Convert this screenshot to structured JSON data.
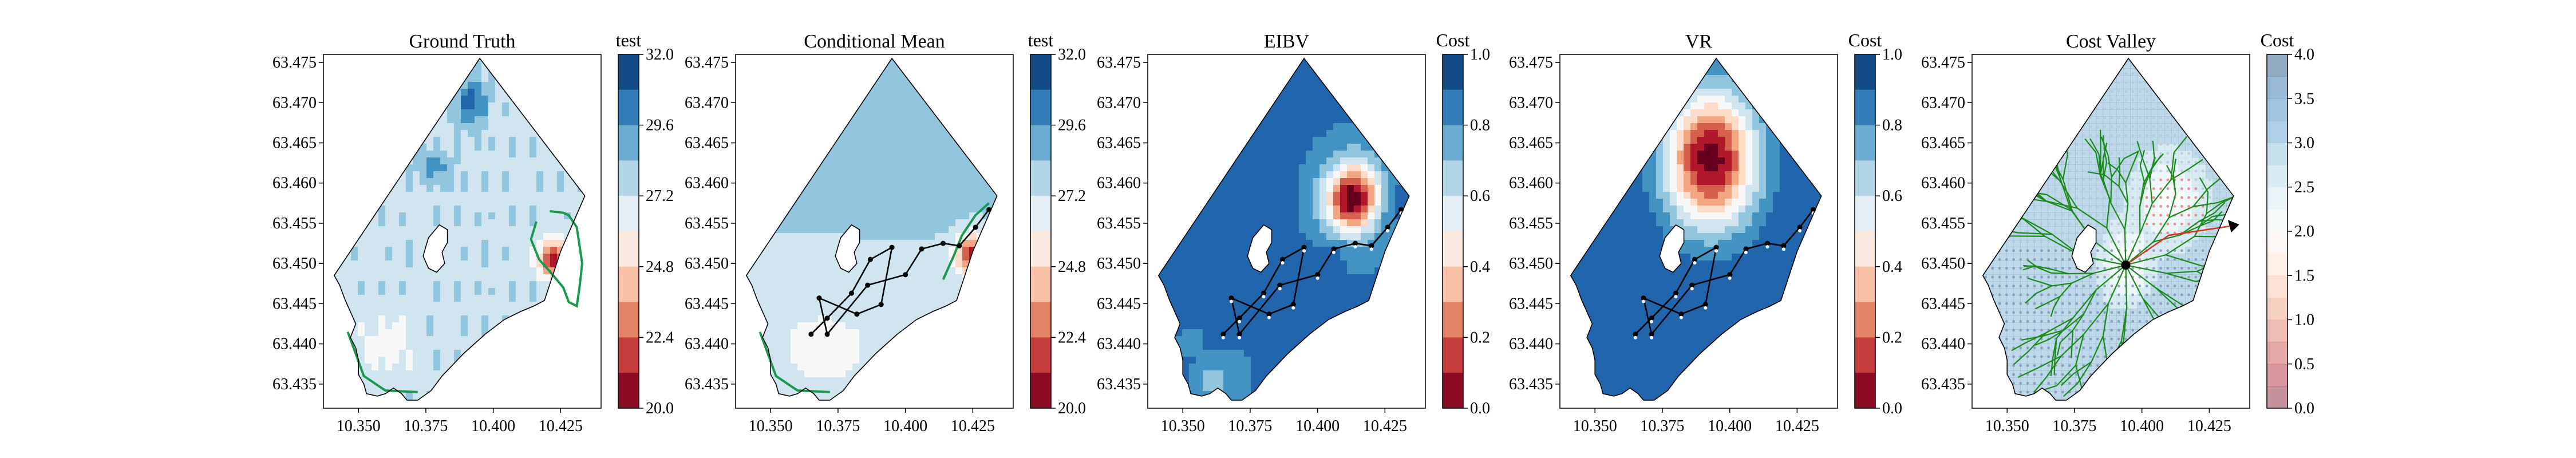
{
  "chart_data": [
    {
      "type": "heatmap",
      "title": "Ground Truth",
      "colorbar_label": "test",
      "colormap": "RdBu",
      "colorbar_ticks": [
        "32.0",
        "29.6",
        "27.2",
        "24.8",
        "22.4",
        "20.0"
      ],
      "colorbar_range": [
        20.0,
        32.0
      ],
      "x_ticks": [
        "10.350",
        "10.375",
        "10.400",
        "10.425"
      ],
      "y_ticks": [
        "63.475",
        "63.470",
        "63.465",
        "63.460",
        "63.455",
        "63.450",
        "63.445",
        "63.440",
        "63.435"
      ],
      "xlim": [
        10.337,
        10.44
      ],
      "ylim": [
        63.432,
        63.476
      ],
      "overlays": [
        "threshold contour (green)"
      ]
    },
    {
      "type": "heatmap",
      "title": "Conditional Mean",
      "colorbar_label": "test",
      "colormap": "RdBu",
      "colorbar_ticks": [
        "32.0",
        "29.6",
        "27.2",
        "24.8",
        "22.4",
        "20.0"
      ],
      "colorbar_range": [
        20.0,
        32.0
      ],
      "x_ticks": [
        "10.350",
        "10.375",
        "10.400",
        "10.425"
      ],
      "y_ticks": [
        "63.475",
        "63.470",
        "63.465",
        "63.460",
        "63.455",
        "63.450",
        "63.445",
        "63.440",
        "63.435"
      ],
      "xlim": [
        10.337,
        10.44
      ],
      "ylim": [
        63.432,
        63.476
      ],
      "overlays": [
        "threshold contour (green)",
        "sampling trajectory (black)"
      ],
      "trajectory": [
        [
          10.365,
          63.4412
        ],
        [
          10.371,
          63.4432
        ],
        [
          10.38,
          63.4463
        ],
        [
          10.387,
          63.4505
        ],
        [
          10.395,
          63.452
        ],
        [
          10.391,
          63.4449
        ],
        [
          10.382,
          63.4437
        ],
        [
          10.368,
          63.4457
        ],
        [
          10.371,
          63.4412
        ],
        [
          10.386,
          63.4473
        ],
        [
          10.4,
          63.4486
        ],
        [
          10.406,
          63.4518
        ],
        [
          10.414,
          63.4525
        ],
        [
          10.42,
          63.4522
        ],
        [
          10.426,
          63.4545
        ],
        [
          10.431,
          63.4567
        ]
      ]
    },
    {
      "type": "heatmap",
      "title": "EIBV",
      "colorbar_label": "Cost",
      "colormap": "RdBu",
      "colorbar_ticks": [
        "1.0",
        "0.8",
        "0.6",
        "0.4",
        "0.2",
        "0.0"
      ],
      "colorbar_range": [
        0.0,
        1.0
      ],
      "x_ticks": [
        "10.350",
        "10.375",
        "10.400",
        "10.425"
      ],
      "y_ticks": [
        "63.475",
        "63.470",
        "63.465",
        "63.460",
        "63.455",
        "63.450",
        "63.445",
        "63.440",
        "63.435"
      ],
      "xlim": [
        10.337,
        10.44
      ],
      "ylim": [
        63.432,
        63.476
      ],
      "overlays": [
        "sampling trajectory (black)",
        "sample points (white)"
      ],
      "trajectory": [
        [
          10.365,
          63.4412
        ],
        [
          10.371,
          63.4432
        ],
        [
          10.38,
          63.4463
        ],
        [
          10.387,
          63.4505
        ],
        [
          10.395,
          63.452
        ],
        [
          10.391,
          63.4449
        ],
        [
          10.382,
          63.4437
        ],
        [
          10.368,
          63.4457
        ],
        [
          10.371,
          63.4412
        ],
        [
          10.386,
          63.4473
        ],
        [
          10.4,
          63.4486
        ],
        [
          10.406,
          63.4518
        ],
        [
          10.414,
          63.4525
        ],
        [
          10.42,
          63.4522
        ],
        [
          10.426,
          63.4545
        ],
        [
          10.431,
          63.4567
        ]
      ]
    },
    {
      "type": "heatmap",
      "title": "VR",
      "colorbar_label": "Cost",
      "colormap": "RdBu",
      "colorbar_ticks": [
        "1.0",
        "0.8",
        "0.6",
        "0.4",
        "0.2",
        "0.0"
      ],
      "colorbar_range": [
        0.0,
        1.0
      ],
      "x_ticks": [
        "10.350",
        "10.375",
        "10.400",
        "10.425"
      ],
      "y_ticks": [
        "63.475",
        "63.470",
        "63.465",
        "63.460",
        "63.455",
        "63.450",
        "63.445",
        "63.440",
        "63.435"
      ],
      "xlim": [
        10.337,
        10.44
      ],
      "ylim": [
        63.432,
        63.476
      ],
      "overlays": [
        "sampling trajectory (black)",
        "sample points (white)"
      ],
      "trajectory": [
        [
          10.365,
          63.4412
        ],
        [
          10.371,
          63.4432
        ],
        [
          10.38,
          63.4463
        ],
        [
          10.387,
          63.4505
        ],
        [
          10.395,
          63.452
        ],
        [
          10.391,
          63.4449
        ],
        [
          10.382,
          63.4437
        ],
        [
          10.368,
          63.4457
        ],
        [
          10.371,
          63.4412
        ],
        [
          10.386,
          63.4473
        ],
        [
          10.4,
          63.4486
        ],
        [
          10.406,
          63.4518
        ],
        [
          10.414,
          63.4525
        ],
        [
          10.42,
          63.4522
        ],
        [
          10.426,
          63.4545
        ],
        [
          10.431,
          63.4567
        ]
      ]
    },
    {
      "type": "heatmap",
      "title": "Cost Valley",
      "colorbar_label": "Cost",
      "colormap": "RdBu (transparent)",
      "colorbar_ticks": [
        "4.0",
        "3.5",
        "3.0",
        "2.5",
        "2.0",
        "1.5",
        "1.0",
        "0.5",
        "0.0"
      ],
      "colorbar_range": [
        0.0,
        4.0
      ],
      "x_ticks": [
        "10.350",
        "10.375",
        "10.400",
        "10.425"
      ],
      "y_ticks": [
        "63.475",
        "63.470",
        "63.465",
        "63.460",
        "63.455",
        "63.450",
        "63.445",
        "63.440",
        "63.435"
      ],
      "xlim": [
        10.337,
        10.44
      ],
      "ylim": [
        63.432,
        63.476
      ],
      "overlays": [
        "scattered grid points",
        "RRT tree (green)",
        "current location (black)",
        "next waypoint (black triangle)"
      ],
      "current_location": [
        10.394,
        63.4498
      ],
      "next_waypoint": [
        10.434,
        63.4547
      ]
    }
  ]
}
